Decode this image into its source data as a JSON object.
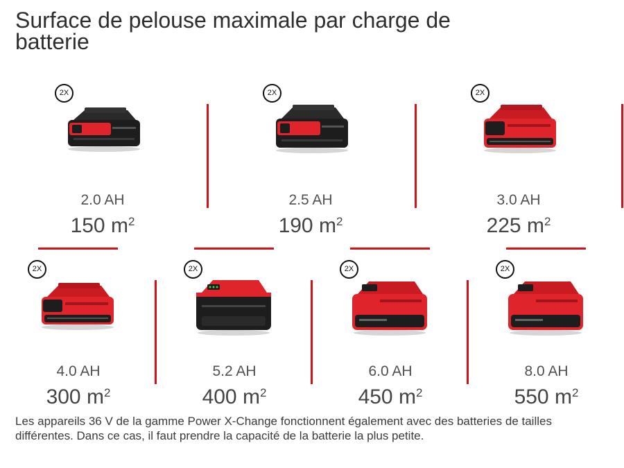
{
  "title": "Surface de pelouse maximale par charge de batterie",
  "badge_text": "2X",
  "area_unit": "m",
  "area_exponent": "2",
  "batteries": [
    {
      "capacity": "2.0 AH",
      "area": "150",
      "style": "dark"
    },
    {
      "capacity": "2.5 AH",
      "area": "190",
      "style": "dark"
    },
    {
      "capacity": "3.0 AH",
      "area": "225",
      "style": "red"
    },
    {
      "capacity": "4.0 AH",
      "area": "300",
      "style": "red"
    },
    {
      "capacity": "5.2 AH",
      "area": "400",
      "style": "dark-tall"
    },
    {
      "capacity": "6.0 AH",
      "area": "450",
      "style": "red-tall"
    },
    {
      "capacity": "8.0 AH",
      "area": "550",
      "style": "red-tall"
    }
  ],
  "footnote": "Les appareils 36 V de la gamme Power X-Change fonctionnent également avec des batteries de tailles différentes. Dans ce cas, il faut prendre la capacité de la batterie la plus petite.",
  "colors": {
    "accent_red": "#d1121b",
    "battery_red": "#e0242b",
    "battery_dark": "#1d1d1d"
  },
  "icons": {
    "badge": "2x-badge-icon",
    "battery": "battery-pack-icon"
  }
}
